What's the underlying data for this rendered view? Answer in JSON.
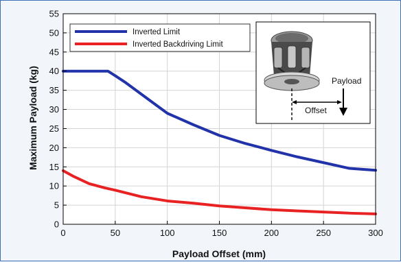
{
  "chart_data": {
    "type": "line",
    "title": "",
    "xlabel": "Payload Offset (mm)",
    "ylabel": "Maximum Payload (kg)",
    "xlim": [
      0,
      300
    ],
    "ylim": [
      0,
      55
    ],
    "x_ticks": [
      0,
      50,
      100,
      150,
      200,
      250,
      300
    ],
    "y_ticks": [
      0,
      5,
      10,
      15,
      20,
      25,
      30,
      35,
      40,
      45,
      50,
      55
    ],
    "grid": true,
    "legend_position": "top-left",
    "series": [
      {
        "name": "Inverted Limit",
        "color": "#2233aa",
        "x": [
          0,
          20,
          43,
          50,
          60,
          75,
          90,
          100,
          125,
          150,
          175,
          200,
          225,
          250,
          275,
          300
        ],
        "y": [
          40,
          40,
          40,
          38.8,
          37,
          34,
          31,
          29,
          26,
          23.2,
          21.1,
          19.3,
          17.6,
          16.1,
          14.6,
          14.1
        ]
      },
      {
        "name": "Inverted Backdriving Limit",
        "color": "#e82222",
        "x": [
          0,
          10,
          25,
          40,
          50,
          75,
          100,
          125,
          150,
          175,
          200,
          225,
          250,
          275,
          300
        ],
        "y": [
          14,
          12.5,
          10.6,
          9.5,
          8.9,
          7.2,
          6.1,
          5.5,
          4.8,
          4.3,
          3.8,
          3.5,
          3.2,
          2.9,
          2.7
        ]
      }
    ],
    "inset": {
      "labels": {
        "payload": "Payload",
        "offset": "Offset"
      }
    }
  }
}
